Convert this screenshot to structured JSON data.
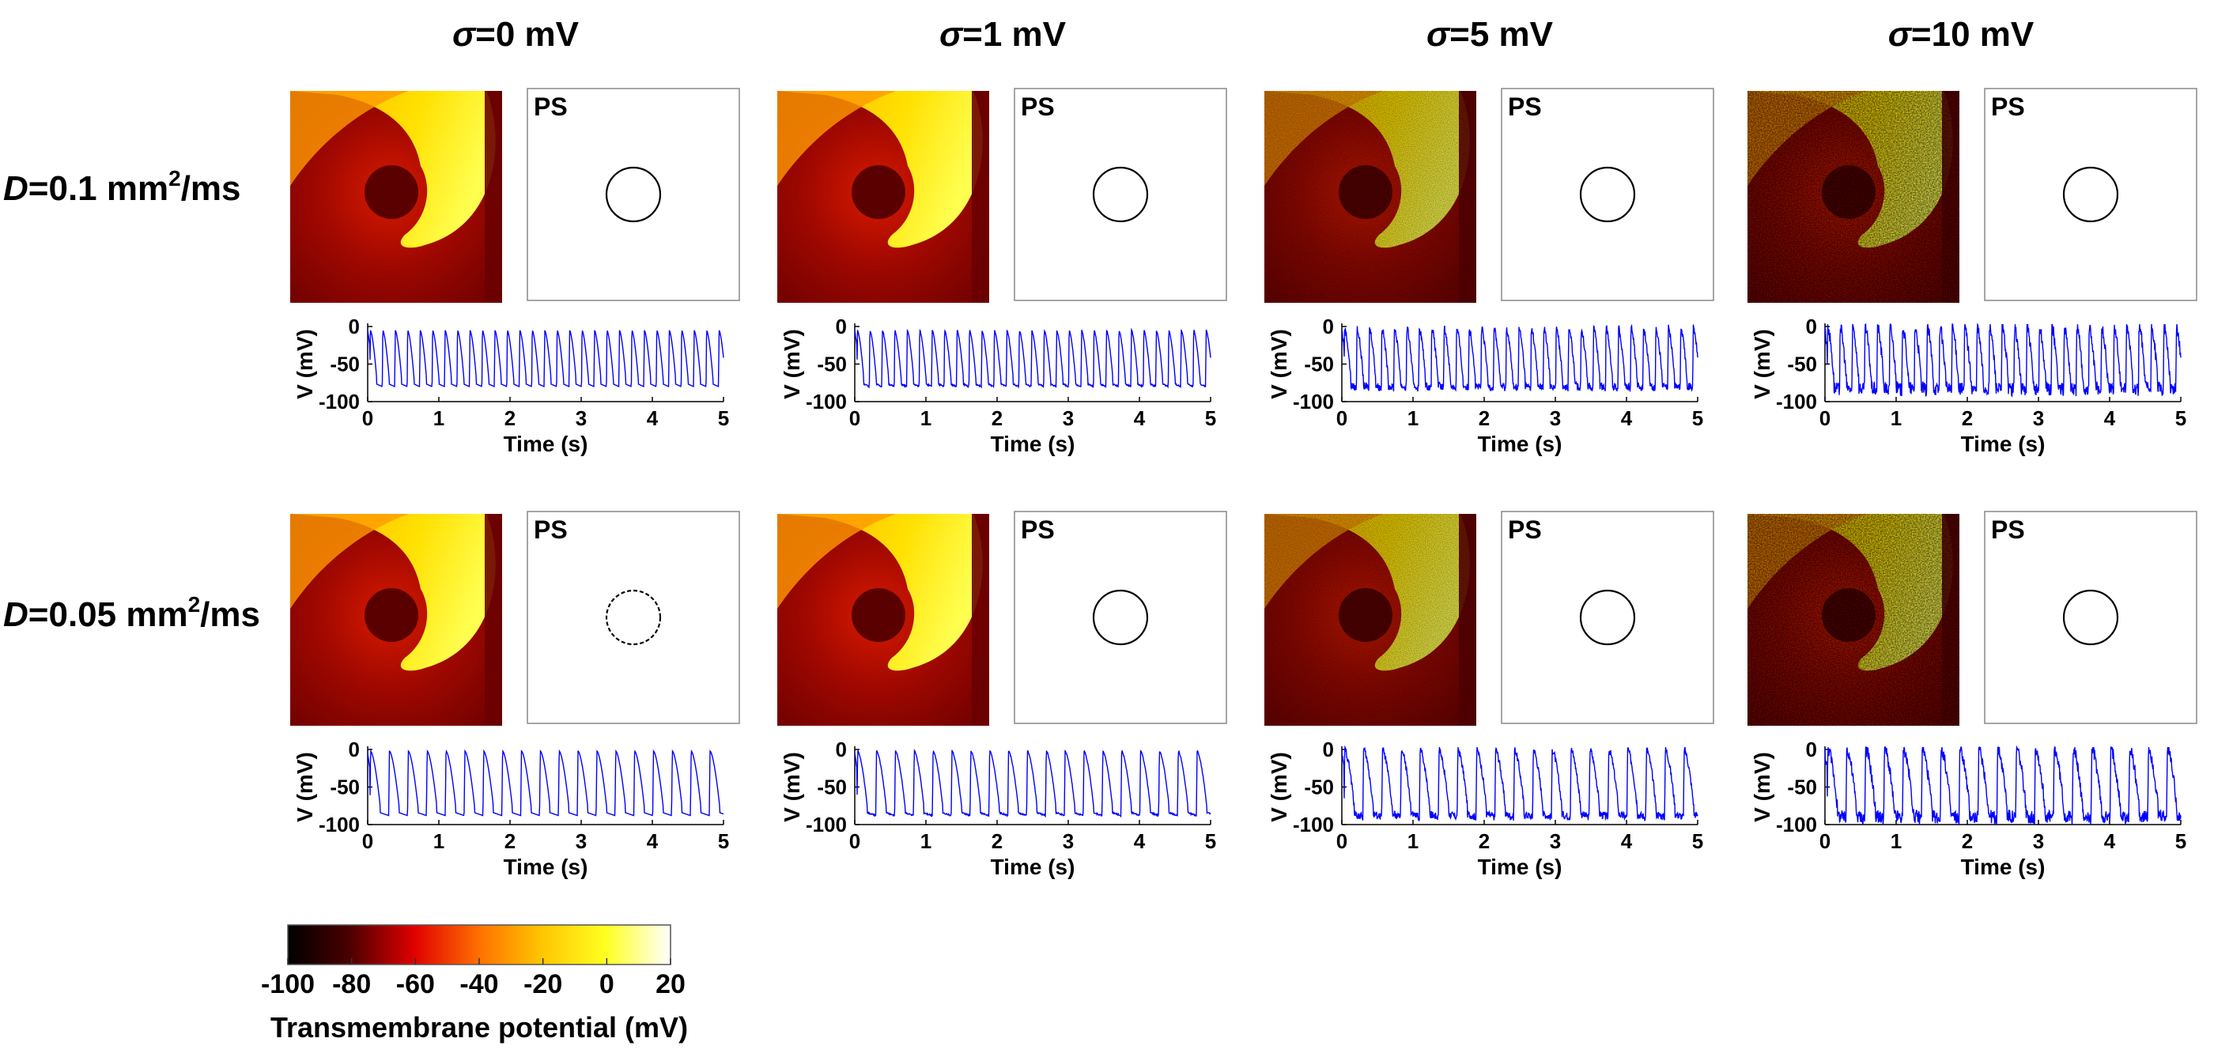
{
  "figure": {
    "column_headers": [
      {
        "sym": "σ",
        "rest": "=0 mV"
      },
      {
        "sym": "σ",
        "rest": "=1 mV"
      },
      {
        "sym": "σ",
        "rest": "=5 mV"
      },
      {
        "sym": "σ",
        "rest": "=10 mV"
      }
    ],
    "row_labels": [
      {
        "sym": "D",
        "pre": "=0.1 mm",
        "sup": "2",
        "post": "/ms"
      },
      {
        "sym": "D",
        "pre": "=0.05 mm",
        "sup": "2",
        "post": "/ms"
      }
    ],
    "ps_label": "PS",
    "noise_levels_mV": [
      0,
      1,
      5,
      10
    ]
  },
  "chart_data": [
    {
      "type": "line",
      "description": "Membrane potential traces for each panel (8 traces, D x sigma)",
      "xlabel": "Time (s)",
      "ylabel": "V (mV)",
      "xlim": [
        0,
        5
      ],
      "ylim": [
        -100,
        0
      ],
      "xticks": [
        0,
        1,
        2,
        3,
        4,
        5
      ],
      "yticks": [
        0,
        -50,
        -100
      ],
      "line_color": "#0000ff",
      "series": [
        {
          "name": "D=0.1, sigma=0",
          "period_s": 0.175,
          "beats": 29,
          "min_mV": -80,
          "max_mV": -5
        },
        {
          "name": "D=0.1, sigma=1",
          "period_s": 0.175,
          "beats": 29,
          "min_mV": -80,
          "max_mV": -5
        },
        {
          "name": "D=0.1, sigma=5",
          "period_s": 0.175,
          "beats": 29,
          "min_mV": -82,
          "max_mV": -2
        },
        {
          "name": "D=0.1, sigma=10",
          "period_s": 0.175,
          "beats": 29,
          "min_mV": -85,
          "max_mV": 0
        },
        {
          "name": "D=0.05, sigma=0",
          "period_s": 0.265,
          "beats": 19,
          "min_mV": -88,
          "max_mV": -2
        },
        {
          "name": "D=0.05, sigma=1",
          "period_s": 0.265,
          "beats": 19,
          "min_mV": -88,
          "max_mV": -2
        },
        {
          "name": "D=0.05, sigma=5",
          "period_s": 0.265,
          "beats": 19,
          "min_mV": -90,
          "max_mV": 0
        },
        {
          "name": "D=0.05, sigma=10",
          "period_s": 0.265,
          "beats": 19,
          "min_mV": -92,
          "max_mV": 2
        }
      ]
    },
    {
      "type": "heatmap",
      "description": "Colorbar for transmembrane potential snapshots",
      "title": "Transmembrane potential (mV)",
      "range": [
        -100,
        20
      ],
      "ticks": [
        -100,
        -80,
        -60,
        -40,
        -20,
        0,
        20
      ],
      "colormap": "hot",
      "colors": [
        "#000000",
        "#7a0000",
        "#e80000",
        "#ff6a00",
        "#ffc000",
        "#ffff00",
        "#ffffff"
      ]
    }
  ]
}
